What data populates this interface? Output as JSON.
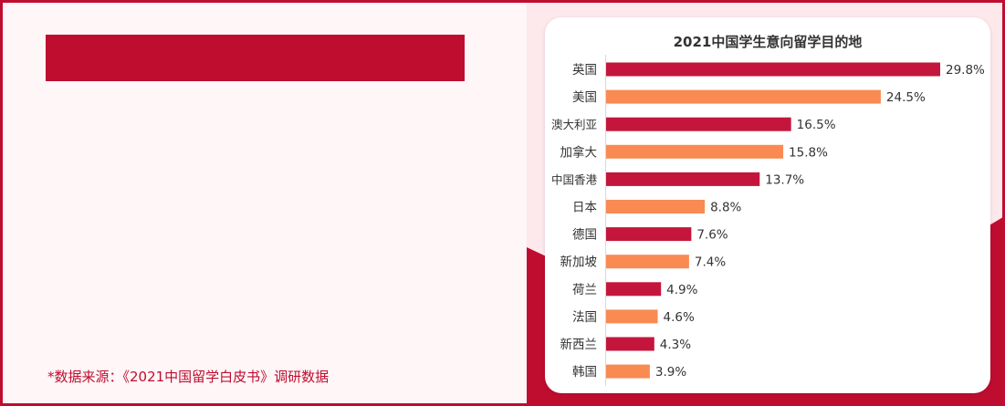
{
  "source_note": "*数据来源：《2021中国留学白皮书》调研数据",
  "colors": {
    "accent": "#bf0d30",
    "series_a": "#c4163c",
    "series_b": "#f98a52",
    "text": "#333333",
    "panel_bg": "#fff6f7",
    "right_bg": "#fde8ec"
  },
  "chart_data": {
    "type": "bar",
    "orientation": "horizontal",
    "title": "2021中国学生意向留学目的地",
    "categories": [
      "英国",
      "美国",
      "澳大利亚",
      "加拿大",
      "中国香港",
      "日本",
      "德国",
      "新加坡",
      "荷兰",
      "法国",
      "新西兰",
      "韩国"
    ],
    "values": [
      29.8,
      24.5,
      16.5,
      15.8,
      13.7,
      8.8,
      7.6,
      7.4,
      4.9,
      4.6,
      4.3,
      3.9
    ],
    "data_labels": [
      "29.8%",
      "24.5%",
      "16.5%",
      "15.8%",
      "13.7%",
      "8.8%",
      "7.6%",
      "7.4%",
      "4.9%",
      "4.6%",
      "4.3%",
      "3.9%"
    ],
    "unit": "%",
    "bar_colors": "alternating",
    "xlim": [
      0,
      29.8
    ],
    "grid": false,
    "legend": "none"
  }
}
